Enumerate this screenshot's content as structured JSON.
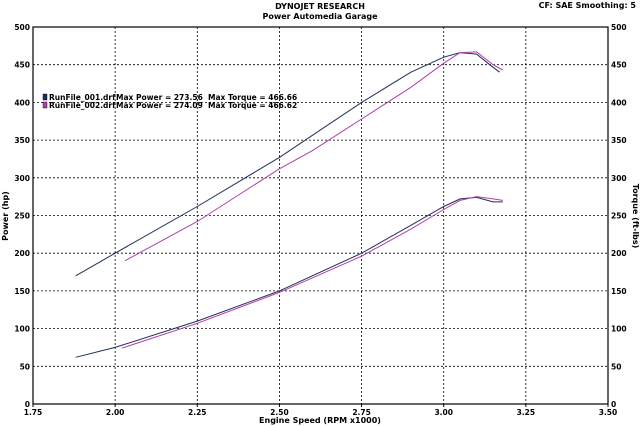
{
  "header": {
    "title": "DYNOJET RESEARCH",
    "subtitle": "Power Automedia Garage",
    "cf_info": "CF: SAE   Smoothing: 5"
  },
  "colors": {
    "run1": "#1f2d5a",
    "run2": "#b040a8",
    "grid": "#000000",
    "frame": "#000000"
  },
  "chart_data": {
    "type": "line",
    "title": "",
    "xlabel": "Engine Speed (RPM x1000)",
    "ylabel": "Power (hp)",
    "y2label": "Torque (ft-lbs)",
    "xlim": [
      1.75,
      3.5
    ],
    "ylim": [
      0,
      500
    ],
    "y2lim": [
      0,
      500
    ],
    "x_ticks": [
      "1.75",
      "2.00",
      "2.25",
      "2.50",
      "2.75",
      "3.00",
      "3.25",
      "3.50"
    ],
    "y_ticks": [
      "0",
      "50",
      "100",
      "150",
      "200",
      "250",
      "300",
      "350",
      "400",
      "450",
      "500"
    ],
    "grid": true,
    "legend": [
      {
        "file": "RunFile_001.drf",
        "max_power": "Max Power = 273.56",
        "max_torque": "Max Torque = 466.66"
      },
      {
        "file": "RunFile_002.drf",
        "max_power": "Max Power = 274.09",
        "max_torque": "Max Torque = 466.62"
      }
    ],
    "series": [
      {
        "name": "RunFile_001.drf Power",
        "axis": "left",
        "x": [
          1.88,
          2.0,
          2.25,
          2.5,
          2.75,
          2.9,
          3.0,
          3.05,
          3.1,
          3.15,
          3.18
        ],
        "y": [
          62,
          75,
          110,
          150,
          200,
          237,
          262,
          272,
          274,
          268,
          268
        ]
      },
      {
        "name": "RunFile_002.drf Power",
        "axis": "left",
        "x": [
          2.02,
          2.25,
          2.5,
          2.75,
          2.9,
          3.0,
          3.05,
          3.1,
          3.15,
          3.18
        ],
        "y": [
          74,
          107,
          148,
          196,
          232,
          258,
          270,
          275,
          272,
          270
        ]
      },
      {
        "name": "RunFile_001.drf Torque",
        "axis": "right",
        "x": [
          1.88,
          2.0,
          2.25,
          2.5,
          2.75,
          2.9,
          3.0,
          3.05,
          3.1,
          3.14,
          3.17
        ],
        "y": [
          170,
          200,
          262,
          327,
          400,
          440,
          460,
          466,
          464,
          450,
          440
        ]
      },
      {
        "name": "RunFile_002.drf Torque",
        "axis": "right",
        "x": [
          2.03,
          2.25,
          2.5,
          2.6,
          2.75,
          2.9,
          3.0,
          3.05,
          3.1,
          3.15,
          3.18
        ],
        "y": [
          190,
          242,
          312,
          336,
          378,
          420,
          452,
          466,
          467,
          450,
          443
        ]
      }
    ]
  }
}
